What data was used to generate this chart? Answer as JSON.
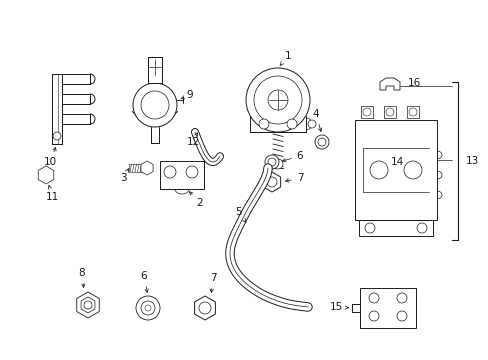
{
  "bg_color": "#ffffff",
  "line_color": "#1a1a1a",
  "figsize": [
    4.89,
    3.6
  ],
  "dpi": 100,
  "lw": 0.7
}
